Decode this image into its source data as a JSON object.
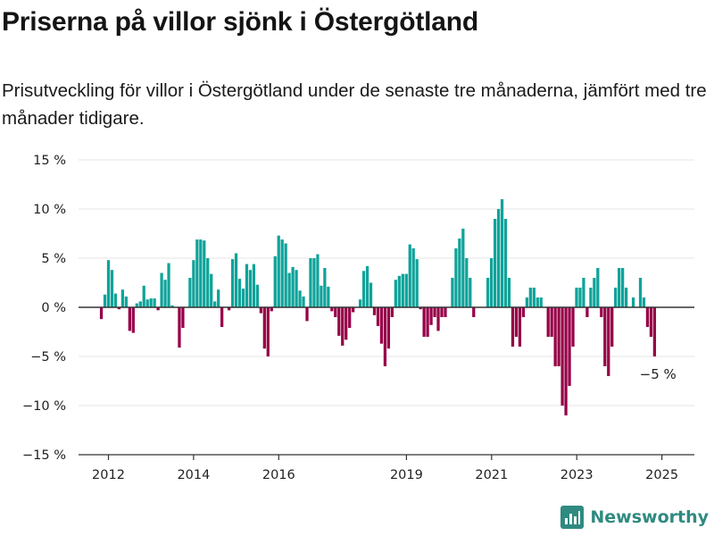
{
  "title": "Priserna på villor sjönk i Östergötland",
  "subtitle": "Prisutveckling för villor i Östergötland under de senaste tre månaderna, jämfört med tre månader tidigare.",
  "brand": "Newsworthy",
  "colors": {
    "positive": "#0fa39a",
    "negative": "#960047",
    "grid": "#e6e6e6",
    "zero_line": "#333333",
    "brand": "#2f8a80"
  },
  "chart_data": {
    "type": "bar",
    "title": "",
    "xlabel": "",
    "ylabel": "",
    "ylim": [
      -15,
      15
    ],
    "grid": true,
    "y_ticks": [
      {
        "value": 15,
        "label": "15 %"
      },
      {
        "value": 10,
        "label": "10 %"
      },
      {
        "value": 5,
        "label": "5 %"
      },
      {
        "value": 0,
        "label": "0 %"
      },
      {
        "value": -5,
        "label": "−5 %"
      },
      {
        "value": -10,
        "label": "−10 %"
      },
      {
        "value": -15,
        "label": "−15 %"
      }
    ],
    "x_ticks": [
      {
        "value": 2012.0,
        "label": "2012"
      },
      {
        "value": 2014.0,
        "label": "2014"
      },
      {
        "value": 2016.0,
        "label": "2016"
      },
      {
        "value": 2019.0,
        "label": "2019"
      },
      {
        "value": 2021.0,
        "label": "2021"
      },
      {
        "value": 2023.0,
        "label": "2023"
      },
      {
        "value": 2025.0,
        "label": "2025"
      }
    ],
    "x_start": 2011.75,
    "x_step": 0.0833,
    "values": [
      0,
      -1.2,
      1.3,
      4.8,
      3.8,
      1.4,
      -0.2,
      1.8,
      1.1,
      -2.4,
      -2.6,
      0.4,
      0.6,
      2.2,
      0.8,
      0.9,
      0.9,
      -0.3,
      3.5,
      2.8,
      4.5,
      0.2,
      0,
      -4.1,
      -2.1,
      0,
      3.0,
      4.8,
      6.9,
      6.9,
      6.8,
      5.0,
      3.4,
      0.6,
      1.8,
      -2.0,
      0,
      -0.3,
      4.9,
      5.5,
      2.9,
      1.9,
      4.4,
      3.8,
      4.4,
      2.3,
      -0.6,
      -4.2,
      -5.0,
      -0.4,
      5.2,
      7.3,
      6.9,
      6.5,
      3.5,
      4.1,
      3.8,
      1.7,
      1.1,
      -1.4,
      5.0,
      5.0,
      5.4,
      2.2,
      4.0,
      2.1,
      -0.4,
      -1.0,
      -2.9,
      -3.9,
      -3.3,
      -2.1,
      -0.5,
      0,
      0.8,
      3.7,
      4.2,
      2.5,
      -0.8,
      -1.9,
      -3.7,
      -6.0,
      -4.2,
      -1.0,
      2.8,
      3.2,
      3.4,
      3.4,
      6.4,
      6.0,
      4.9,
      -0.2,
      -3.0,
      -3.0,
      -1.8,
      -1.0,
      -2.4,
      -1.0,
      -1.0,
      0,
      3.0,
      6.0,
      7.0,
      8.0,
      5.0,
      3.0,
      -1.0,
      0,
      0,
      0,
      3.0,
      5.0,
      9.0,
      10.0,
      11.0,
      9.0,
      3.0,
      -4.0,
      -3.0,
      -4.0,
      -1.0,
      1.0,
      2.0,
      2.0,
      1.0,
      1.0,
      0,
      -3.0,
      -3.0,
      -6.0,
      -6.0,
      -10.0,
      -11.0,
      -8.0,
      -4.0,
      2.0,
      2.0,
      3.0,
      -1.0,
      2.0,
      3.0,
      4.0,
      -1.0,
      -6.0,
      -7.0,
      -4.0,
      2.0,
      4.0,
      4.0,
      2.0,
      0,
      1.0,
      0,
      3.0,
      1.0,
      -2.0,
      -3.0,
      -5.0
    ],
    "annotations": [
      {
        "text": "−5 %",
        "x": 2024.917,
        "y": -5
      }
    ]
  }
}
